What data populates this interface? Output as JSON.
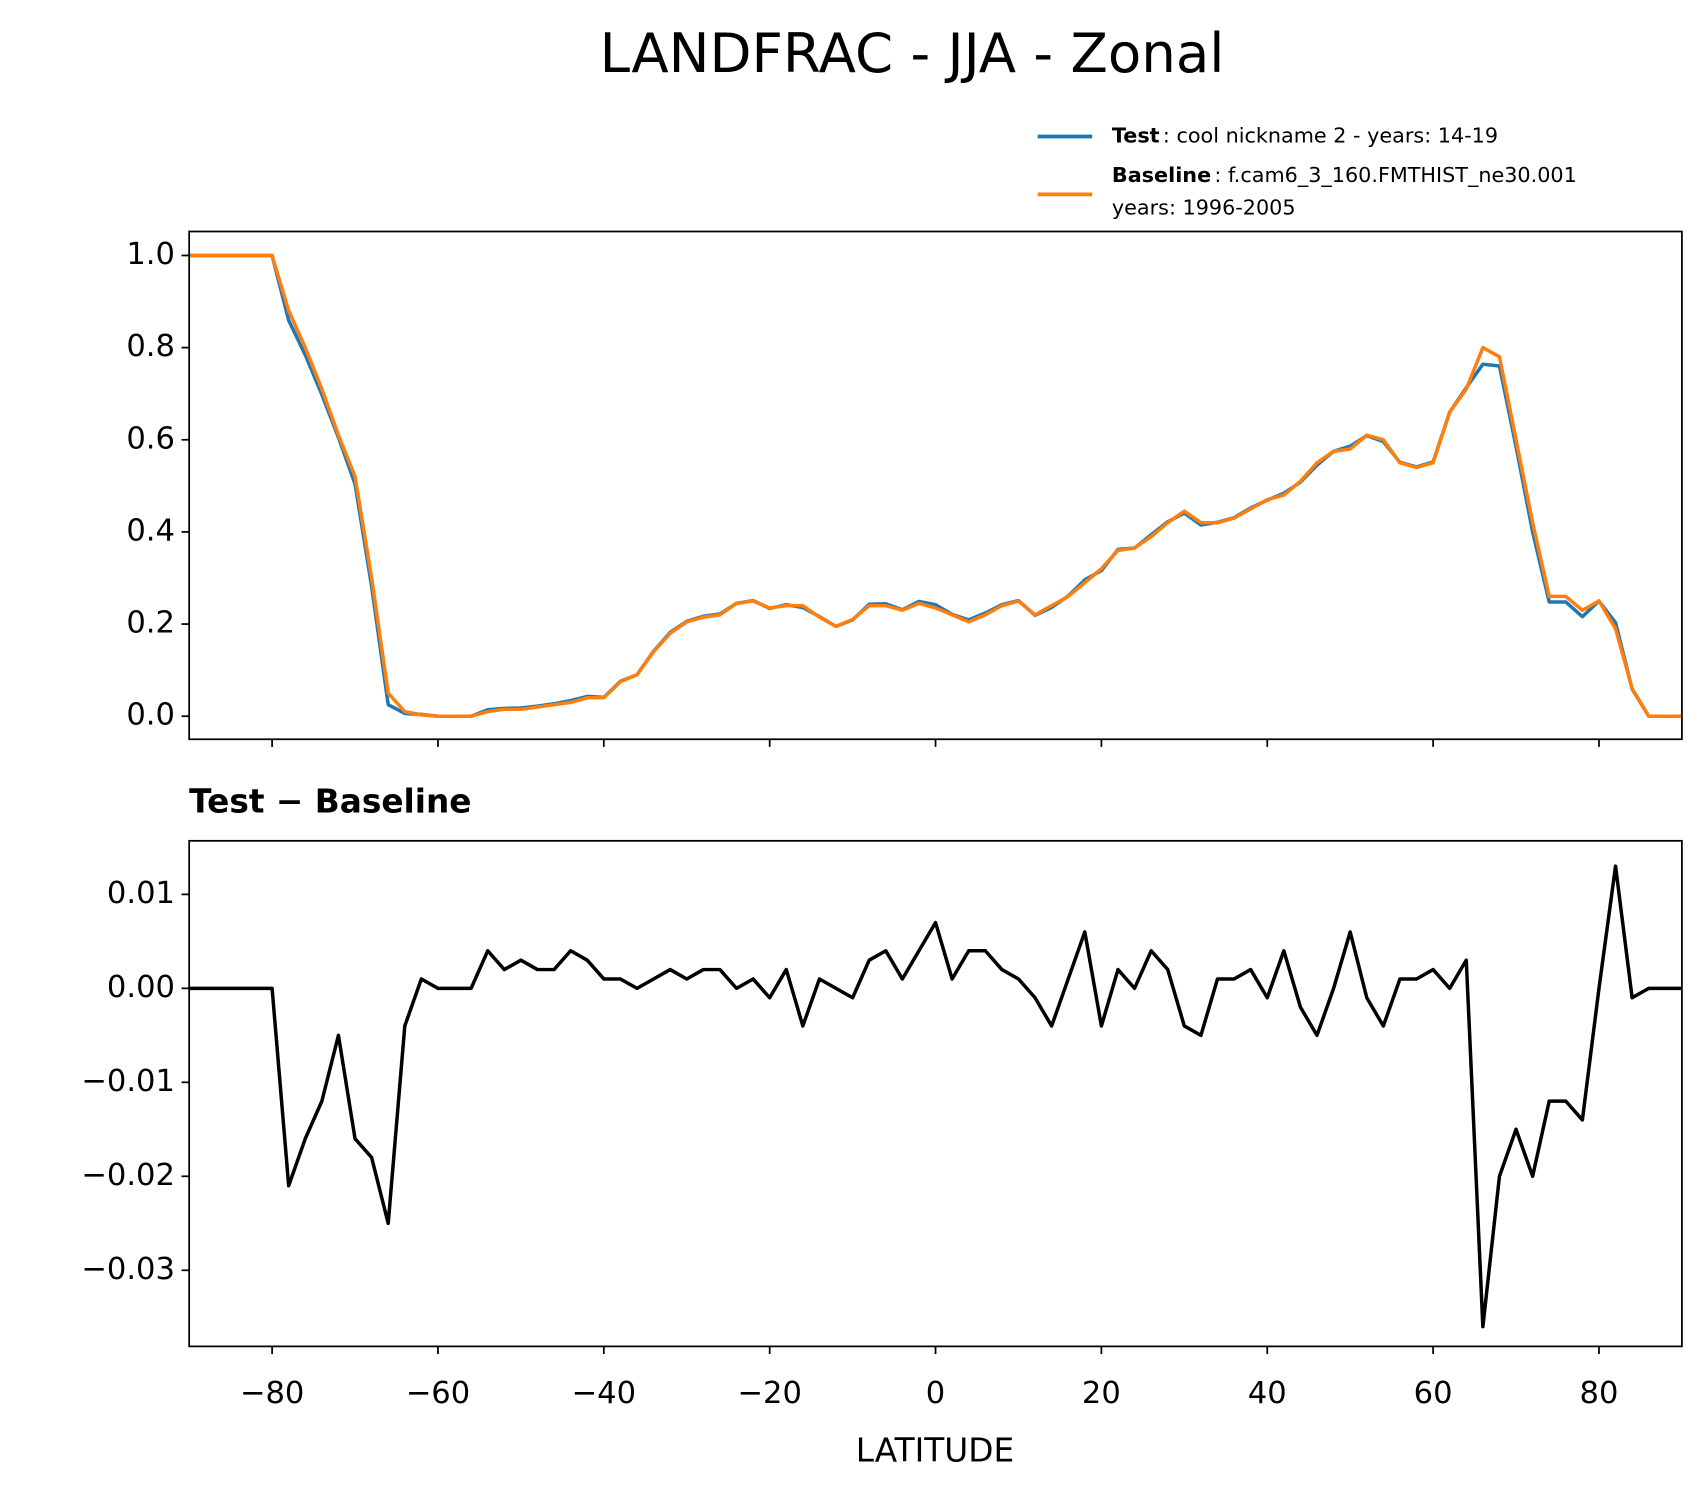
{
  "chart_data": [
    {
      "type": "line",
      "title": "LANDFRAC - JJA - Zonal",
      "x": [
        -90,
        -88,
        -86,
        -84,
        -82,
        -80,
        -78,
        -76,
        -74,
        -72,
        -70,
        -68,
        -66,
        -64,
        -62,
        -60,
        -58,
        -56,
        -54,
        -52,
        -50,
        -48,
        -46,
        -44,
        -42,
        -40,
        -38,
        -36,
        -34,
        -32,
        -30,
        -28,
        -26,
        -24,
        -22,
        -20,
        -18,
        -16,
        -14,
        -12,
        -10,
        -8,
        -6,
        -4,
        -2,
        0,
        2,
        4,
        6,
        8,
        10,
        12,
        14,
        16,
        18,
        20,
        22,
        24,
        26,
        28,
        30,
        32,
        34,
        36,
        38,
        40,
        42,
        44,
        46,
        48,
        50,
        52,
        54,
        56,
        58,
        60,
        62,
        64,
        66,
        68,
        70,
        72,
        74,
        76,
        78,
        80,
        82,
        84,
        86,
        88,
        90
      ],
      "series": [
        {
          "name": "Test",
          "description": [
            ": cool nickname 2 - years: 14-19"
          ],
          "color": "#1f77b4",
          "values": [
            1,
            1,
            1,
            1,
            1,
            1,
            0.859,
            0.784,
            0.698,
            0.605,
            0.504,
            0.282,
            0.025,
            0.006,
            0.004,
            0,
            0,
            0,
            0.014,
            0.017,
            0.018,
            0.022,
            0.027,
            0.034,
            0.043,
            0.041,
            0.076,
            0.09,
            0.141,
            0.182,
            0.206,
            0.217,
            0.222,
            0.245,
            0.251,
            0.234,
            0.242,
            0.236,
            0.216,
            0.195,
            0.209,
            0.243,
            0.244,
            0.231,
            0.249,
            0.242,
            0.221,
            0.209,
            0.224,
            0.242,
            0.251,
            0.219,
            0.236,
            0.261,
            0.296,
            0.316,
            0.362,
            0.365,
            0.394,
            0.422,
            0.441,
            0.415,
            0.421,
            0.431,
            0.452,
            0.469,
            0.484,
            0.508,
            0.545,
            0.575,
            0.586,
            0.609,
            0.596,
            0.551,
            0.541,
            0.552,
            0.66,
            0.713,
            0.764,
            0.76,
            0.585,
            0.4,
            0.248,
            0.248,
            0.216,
            0.25,
            0.203,
            0.059,
            0,
            0,
            0
          ]
        },
        {
          "name": "Baseline",
          "description": [
            ": f.cam6_3_160.FMTHIST_ne30.001",
            "years: 1996-2005"
          ],
          "color": "#ff7f0e",
          "values": [
            1,
            1,
            1,
            1,
            1,
            1,
            0.88,
            0.8,
            0.71,
            0.61,
            0.52,
            0.3,
            0.05,
            0.01,
            0.003,
            0,
            0,
            0,
            0.01,
            0.015,
            0.015,
            0.02,
            0.025,
            0.03,
            0.04,
            0.04,
            0.075,
            0.09,
            0.14,
            0.18,
            0.205,
            0.215,
            0.22,
            0.245,
            0.25,
            0.235,
            0.24,
            0.24,
            0.215,
            0.195,
            0.21,
            0.24,
            0.24,
            0.23,
            0.245,
            0.235,
            0.22,
            0.205,
            0.22,
            0.24,
            0.25,
            0.22,
            0.24,
            0.26,
            0.29,
            0.32,
            0.36,
            0.365,
            0.39,
            0.42,
            0.445,
            0.42,
            0.42,
            0.43,
            0.45,
            0.47,
            0.48,
            0.51,
            0.55,
            0.575,
            0.58,
            0.61,
            0.6,
            0.55,
            0.54,
            0.55,
            0.66,
            0.71,
            0.8,
            0.78,
            0.6,
            0.42,
            0.26,
            0.26,
            0.23,
            0.25,
            0.19,
            0.06,
            0,
            0,
            0
          ]
        }
      ],
      "xlim": [
        -90,
        90
      ],
      "xticks": [
        -80,
        -60,
        -40,
        -20,
        0,
        20,
        40,
        60,
        80
      ],
      "ylim": [
        -0.05,
        1.052
      ],
      "yticks": [
        {
          "value": 0,
          "label": "0.0"
        },
        0.2,
        0.4,
        0.6,
        0.8,
        {
          "value": 1,
          "label": "1.0"
        }
      ],
      "legend": "upper right"
    },
    {
      "type": "line",
      "title": "Test − Baseline",
      "xlabel": "LATITUDE",
      "x": [
        -90,
        -88,
        -86,
        -84,
        -82,
        -80,
        -78,
        -76,
        -74,
        -72,
        -70,
        -68,
        -66,
        -64,
        -62,
        -60,
        -58,
        -56,
        -54,
        -52,
        -50,
        -48,
        -46,
        -44,
        -42,
        -40,
        -38,
        -36,
        -34,
        -32,
        -30,
        -28,
        -26,
        -24,
        -22,
        -20,
        -18,
        -16,
        -14,
        -12,
        -10,
        -8,
        -6,
        -4,
        -2,
        0,
        2,
        4,
        6,
        8,
        10,
        12,
        14,
        16,
        18,
        20,
        22,
        24,
        26,
        28,
        30,
        32,
        34,
        36,
        38,
        40,
        42,
        44,
        46,
        48,
        50,
        52,
        54,
        56,
        58,
        60,
        62,
        64,
        66,
        68,
        70,
        72,
        74,
        76,
        78,
        80,
        82,
        84,
        86,
        88,
        90
      ],
      "series": [
        {
          "color": "#000000",
          "values": [
            0,
            0,
            0,
            0,
            0,
            0,
            -0.021,
            -0.016,
            -0.012,
            -0.005,
            -0.016,
            -0.018,
            -0.025,
            -0.004,
            0.001,
            0,
            0,
            0,
            0.004,
            0.002,
            0.003,
            0.002,
            0.002,
            0.004,
            0.003,
            0.001,
            0.001,
            0,
            0.001,
            0.002,
            0.001,
            0.002,
            0.002,
            0,
            0.001,
            -0.001,
            0.002,
            -0.004,
            0.001,
            0,
            -0.001,
            0.003,
            0.004,
            0.001,
            0.004,
            0.007,
            0.001,
            0.004,
            0.004,
            0.002,
            0.001,
            -0.001,
            -0.004,
            0.001,
            0.006,
            -0.004,
            0.002,
            0,
            0.004,
            0.002,
            -0.004,
            -0.005,
            0.001,
            0.001,
            0.002,
            -0.001,
            0.004,
            -0.002,
            -0.005,
            0,
            0.006,
            -0.001,
            -0.004,
            0.001,
            0.001,
            0.002,
            0,
            0.003,
            -0.036,
            -0.02,
            -0.015,
            -0.02,
            -0.012,
            -0.012,
            -0.014,
            0,
            0.013,
            -0.001,
            0,
            0,
            0
          ]
        }
      ],
      "xlim": [
        -90,
        90
      ],
      "xticks": [
        {
          "value": -80,
          "label": "−80"
        },
        {
          "value": -60,
          "label": "−60"
        },
        {
          "value": -40,
          "label": "−40"
        },
        {
          "value": -20,
          "label": "−20"
        },
        0,
        20,
        40,
        60,
        80
      ],
      "ylim": [
        -0.0381,
        0.0157
      ],
      "yticks": [
        {
          "value": -0.03,
          "label": "−0.03"
        },
        {
          "value": -0.02,
          "label": "−0.02"
        },
        {
          "value": -0.01,
          "label": "−0.01"
        },
        {
          "value": 0,
          "label": "0.00"
        },
        0.01
      ]
    }
  ]
}
